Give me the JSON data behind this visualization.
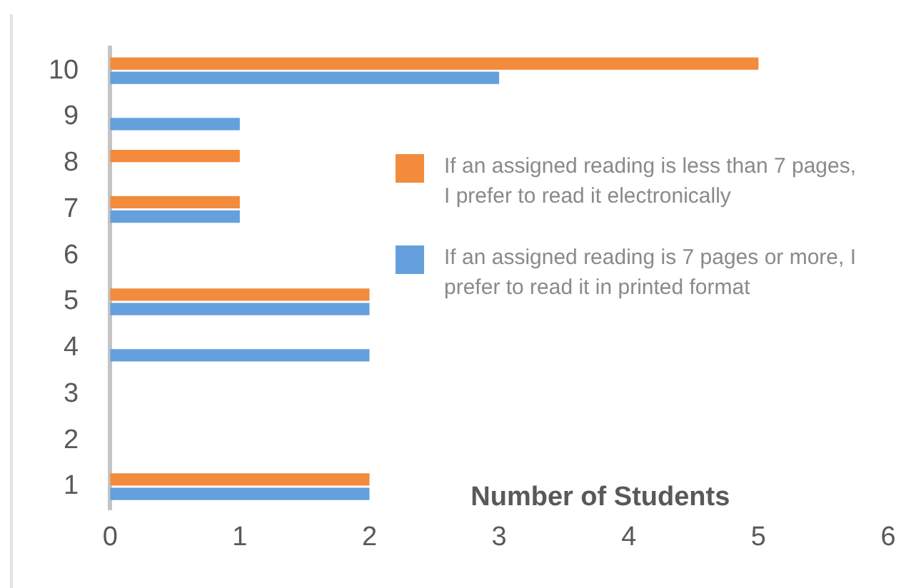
{
  "chart_data": {
    "type": "bar",
    "orientation": "horizontal",
    "xlabel": "Number of Students",
    "categories": [
      "10",
      "9",
      "8",
      "7",
      "6",
      "5",
      "4",
      "3",
      "2",
      "1"
    ],
    "series": [
      {
        "name": "If an assigned reading is less than 7 pages, I prefer to read it electronically",
        "color": "#f28b3c",
        "values": [
          5,
          null,
          1,
          1,
          null,
          2,
          null,
          null,
          null,
          2
        ]
      },
      {
        "name": "If an assigned reading is 7 pages or more, I prefer to read it in printed format",
        "color": "#64a0dc",
        "values": [
          3,
          1,
          null,
          1,
          null,
          2,
          2,
          null,
          null,
          2
        ]
      }
    ],
    "xlim": [
      0,
      6
    ],
    "xticks": [
      0,
      1,
      2,
      3,
      4,
      5,
      6
    ],
    "legend": "right"
  }
}
